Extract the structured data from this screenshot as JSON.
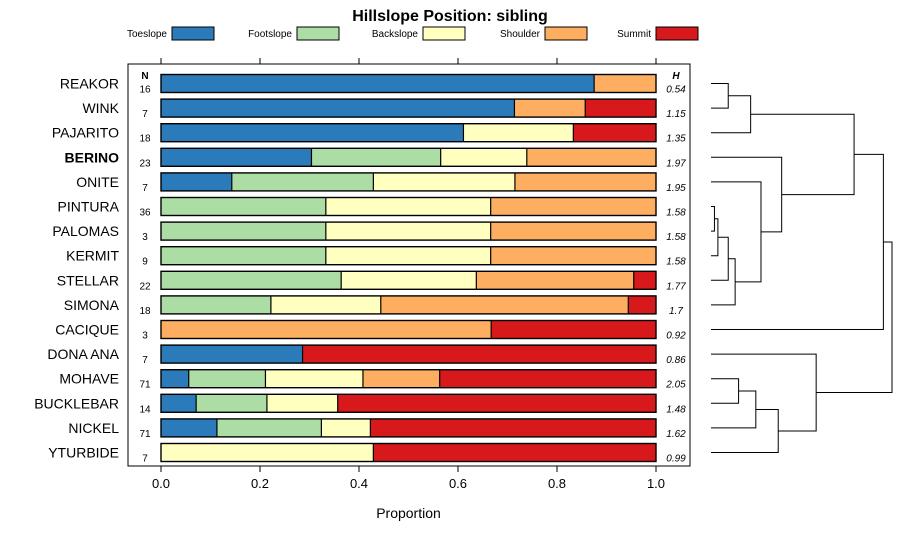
{
  "chart_data": {
    "type": "bar",
    "orientation": "horizontal",
    "stacked": true,
    "title": "Hillslope Position: sibling",
    "xlabel": "Proportion",
    "ylabel": "",
    "xlim": [
      0,
      1
    ],
    "xticks": [
      0,
      0.2,
      0.4,
      0.6,
      0.8,
      1
    ],
    "xtick_labels": [
      "0.0",
      "0.2",
      "0.4",
      "0.6",
      "0.8",
      "1.0"
    ],
    "n_header": "N",
    "h_header": "H",
    "highlight": "BERINO",
    "legend_position": "top",
    "series": [
      {
        "name": "Toeslope",
        "color": "#2b7bba"
      },
      {
        "name": "Footslope",
        "color": "#abdda4"
      },
      {
        "name": "Backslope",
        "color": "#ffffbf"
      },
      {
        "name": "Shoulder",
        "color": "#fdae61"
      },
      {
        "name": "Summit",
        "color": "#d7191c"
      }
    ],
    "rows": [
      {
        "name": "REAKOR",
        "n": "16",
        "h": "0.54",
        "values": [
          0.875,
          0,
          0,
          0.125,
          0
        ]
      },
      {
        "name": "WINK",
        "n": "7",
        "h": "1.15",
        "values": [
          0.714,
          0,
          0,
          0.143,
          0.143
        ]
      },
      {
        "name": "PAJARITO",
        "n": "18",
        "h": "1.35",
        "values": [
          0.611,
          0,
          0.222,
          0,
          0.167
        ]
      },
      {
        "name": "BERINO",
        "n": "23",
        "h": "1.97",
        "values": [
          0.304,
          0.261,
          0.174,
          0.261,
          0
        ]
      },
      {
        "name": "ONITE",
        "n": "7",
        "h": "1.95",
        "values": [
          0.143,
          0.286,
          0.286,
          0.285,
          0
        ]
      },
      {
        "name": "PINTURA",
        "n": "36",
        "h": "1.58",
        "values": [
          0,
          0.333,
          0.333,
          0.334,
          0
        ]
      },
      {
        "name": "PALOMAS",
        "n": "3",
        "h": "1.58",
        "values": [
          0,
          0.333,
          0.333,
          0.334,
          0
        ]
      },
      {
        "name": "KERMIT",
        "n": "9",
        "h": "1.58",
        "values": [
          0,
          0.333,
          0.333,
          0.334,
          0
        ]
      },
      {
        "name": "STELLAR",
        "n": "22",
        "h": "1.77",
        "values": [
          0,
          0.364,
          0.273,
          0.318,
          0.045
        ]
      },
      {
        "name": "SIMONA",
        "n": "18",
        "h": "1.7",
        "values": [
          0,
          0.222,
          0.222,
          0.5,
          0.056
        ]
      },
      {
        "name": "CACIQUE",
        "n": "3",
        "h": "0.92",
        "values": [
          0,
          0,
          0,
          0.667,
          0.333
        ]
      },
      {
        "name": "DONA ANA",
        "n": "7",
        "h": "0.86",
        "values": [
          0.286,
          0,
          0,
          0,
          0.714
        ]
      },
      {
        "name": "MOHAVE",
        "n": "71",
        "h": "2.05",
        "values": [
          0.056,
          0.155,
          0.197,
          0.155,
          0.437
        ]
      },
      {
        "name": "BUCKLEBAR",
        "n": "14",
        "h": "1.48",
        "values": [
          0.071,
          0.143,
          0.143,
          0,
          0.643
        ]
      },
      {
        "name": "NICKEL",
        "n": "71",
        "h": "1.62",
        "values": [
          0.113,
          0.211,
          0.099,
          0,
          0.577
        ]
      },
      {
        "name": "YTURBIDE",
        "n": "7",
        "h": "0.99",
        "values": [
          0,
          0,
          0.429,
          0,
          0.571
        ]
      }
    ],
    "dendrogram": {
      "leaves": [
        "REAKOR",
        "WINK",
        "PAJARITO",
        "BERINO",
        "ONITE",
        "PINTURA",
        "PALOMAS",
        "KERMIT",
        "STELLAR",
        "SIMONA",
        "CACIQUE",
        "DONA ANA",
        "MOHAVE",
        "BUCKLEBAR",
        "NICKEL",
        "YTURBIDE"
      ],
      "merges": [
        {
          "a": 0,
          "b": 1,
          "height": 0.1
        },
        {
          "a": 16,
          "b": 2,
          "height": 0.23
        },
        {
          "a": 5,
          "b": 6,
          "height": 0.02
        },
        {
          "a": 18,
          "b": 7,
          "height": 0.04
        },
        {
          "a": 19,
          "b": 8,
          "height": 0.1
        },
        {
          "a": 20,
          "b": 9,
          "height": 0.14
        },
        {
          "a": 21,
          "b": 4,
          "height": 0.29
        },
        {
          "a": 22,
          "b": 3,
          "height": 0.41
        },
        {
          "a": 17,
          "b": 23,
          "height": 0.83
        },
        {
          "a": 24,
          "b": 10,
          "height": 1.0
        },
        {
          "a": 12,
          "b": 13,
          "height": 0.16
        },
        {
          "a": 26,
          "b": 14,
          "height": 0.26
        },
        {
          "a": 27,
          "b": 15,
          "height": 0.39
        },
        {
          "a": 11,
          "b": 28,
          "height": 0.61
        },
        {
          "a": 25,
          "b": 29,
          "height": 1.05
        }
      ]
    }
  }
}
